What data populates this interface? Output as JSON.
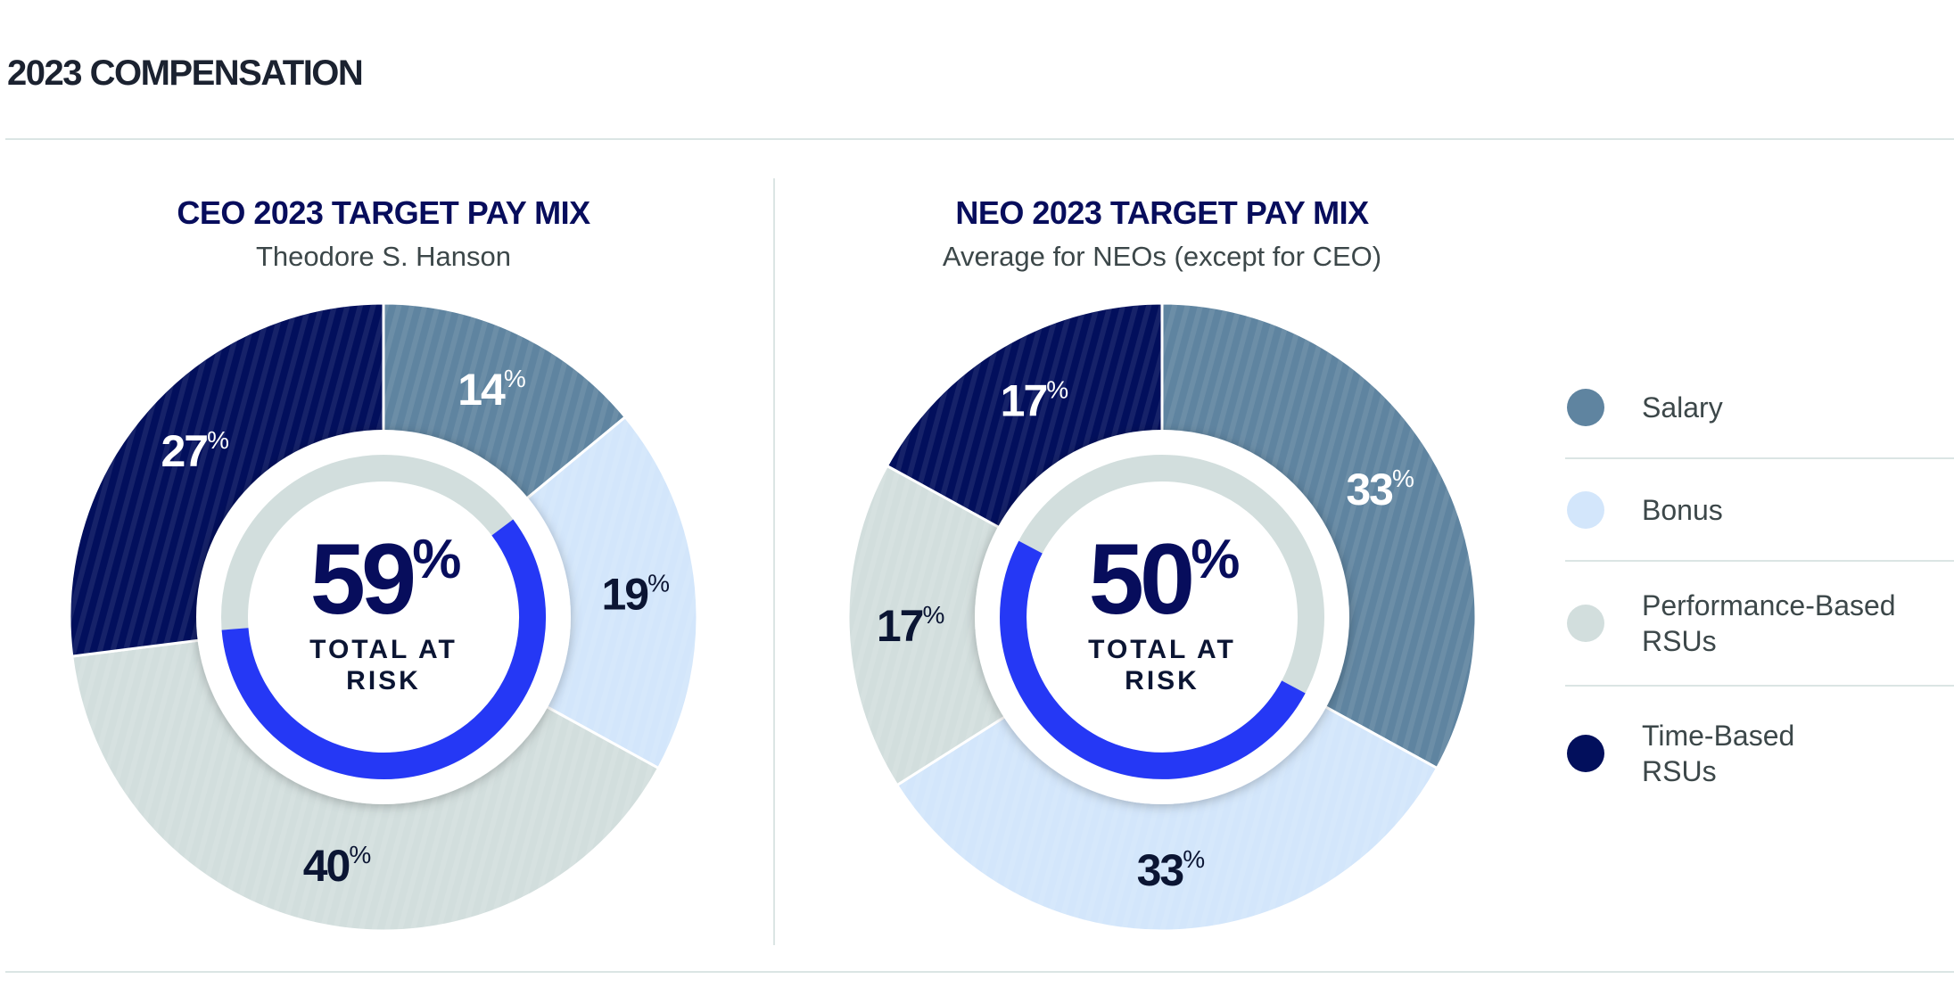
{
  "page_title": "2023 COMPENSATION",
  "colors": {
    "Salary": "#5f84a0",
    "Bonus": "#d3e6fb",
    "Performance-Based RSUs": "#d2dedd",
    "Time-Based RSUs": "#020f5c",
    "at_risk_ring": "#2538f5",
    "ring_track": "#d2dedd"
  },
  "legend": [
    {
      "label": "Salary",
      "key": "Salary"
    },
    {
      "label": "Bonus",
      "key": "Bonus"
    },
    {
      "label": "Performance-Based RSUs",
      "key": "Performance-Based RSUs"
    },
    {
      "label": "Time-Based RSUs",
      "key": "Time-Based RSUs"
    }
  ],
  "chart_data": [
    {
      "type": "pie",
      "title": "CEO 2023 TARGET PAY MIX",
      "subtitle": "Theodore S. Hanson",
      "categories": [
        "Salary",
        "Bonus",
        "Performance-Based RSUs",
        "Time-Based RSUs"
      ],
      "values": [
        14,
        19,
        40,
        27
      ],
      "unit": "%",
      "center_value": 59,
      "center_label": "TOTAL AT RISK"
    },
    {
      "type": "pie",
      "title": "NEO 2023 TARGET PAY MIX",
      "subtitle": "Average for NEOs (except for CEO)",
      "categories": [
        "Salary",
        "Bonus",
        "Performance-Based RSUs",
        "Time-Based RSUs"
      ],
      "values": [
        33,
        33,
        17,
        17
      ],
      "unit": "%",
      "center_value": 50,
      "center_label": "TOTAL AT RISK"
    }
  ]
}
